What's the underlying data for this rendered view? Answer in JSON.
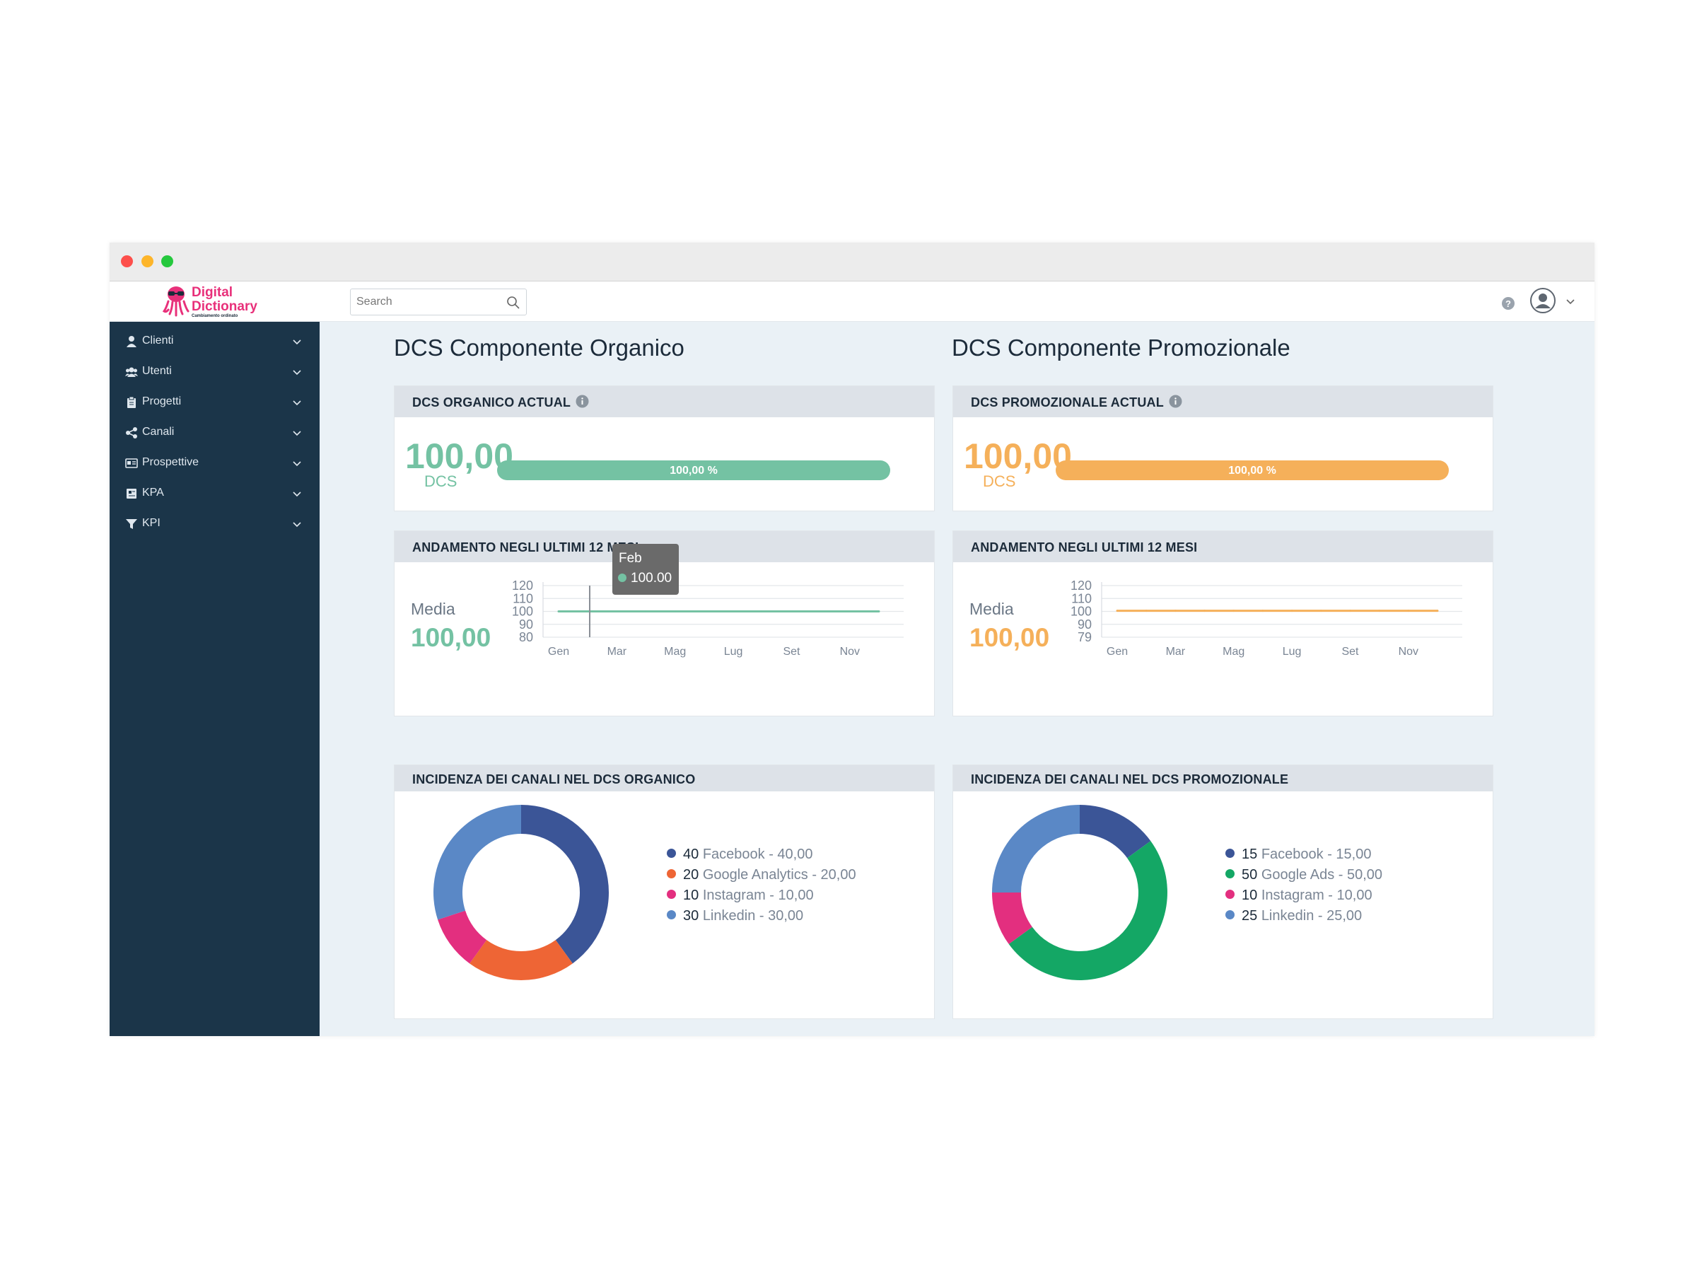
{
  "app": {
    "logo": {
      "line1": "Digital",
      "line2": "Dictionary",
      "tagline": "Cambiamento ordinato"
    },
    "search": {
      "placeholder": "Search"
    }
  },
  "sidebar": {
    "items": [
      {
        "label": "Clienti",
        "icon": "user-icon"
      },
      {
        "label": "Utenti",
        "icon": "users-icon"
      },
      {
        "label": "Progetti",
        "icon": "clipboard-icon"
      },
      {
        "label": "Canali",
        "icon": "share-icon"
      },
      {
        "label": "Prospettive",
        "icon": "card-icon"
      },
      {
        "label": "KPA",
        "icon": "kpa-icon"
      },
      {
        "label": "KPI",
        "icon": "funnel-icon"
      }
    ]
  },
  "organico": {
    "title": "DCS Componente Organico",
    "actual": {
      "header": "DCS ORGANICO ACTUAL",
      "value": "100,00",
      "unit": "DCS",
      "bar_label": "100,00 %",
      "percent": 100
    },
    "trend": {
      "header": "ANDAMENTO NEGLI ULTIMI 12 MESI",
      "media_label": "Media",
      "media_value": "100,00",
      "tooltip": {
        "month": "Feb",
        "value": "100.00"
      }
    },
    "channels": {
      "header": "INCIDENZA DEI CANALI NEL DCS ORGANICO",
      "legend": [
        {
          "num": "40",
          "label": "Facebook - 40,00"
        },
        {
          "num": "20",
          "label": "Google Analytics - 20,00"
        },
        {
          "num": "10",
          "label": "Instagram - 10,00"
        },
        {
          "num": "30",
          "label": "Linkedin - 30,00"
        }
      ]
    }
  },
  "promozionale": {
    "title": "DCS Componente Promozionale",
    "actual": {
      "header": "DCS PROMOZIONALE ACTUAL",
      "value": "100,00",
      "unit": "DCS",
      "bar_label": "100,00 %",
      "percent": 100
    },
    "trend": {
      "header": "ANDAMENTO NEGLI ULTIMI 12 MESI",
      "media_label": "Media",
      "media_value": "100,00"
    },
    "channels": {
      "header": "INCIDENZA DEI CANALI NEL DCS PROMOZIONALE",
      "legend": [
        {
          "num": "15",
          "label": "Facebook - 15,00"
        },
        {
          "num": "50",
          "label": "Google Ads - 50,00"
        },
        {
          "num": "10",
          "label": "Instagram - 10,00"
        },
        {
          "num": "25",
          "label": "Linkedin - 25,00"
        }
      ]
    }
  },
  "colors": {
    "green": "#74c2a3",
    "orange": "#f5b05a",
    "facebook": "#3b5597",
    "google_analytics": "#ee6535",
    "google_ads": "#14a765",
    "instagram": "#e32f7f",
    "linkedin": "#5a88c6"
  },
  "chart_data": [
    {
      "type": "line",
      "ylim": [
        80,
        120
      ],
      "yticks": [
        "120",
        "110",
        "100",
        "90",
        "80"
      ],
      "xticks": [
        "Gen",
        "Mar",
        "Mag",
        "Lug",
        "Set",
        "Nov"
      ],
      "series": [
        {
          "values": [
            100,
            100,
            100,
            100,
            100,
            100,
            100,
            100,
            100,
            100,
            100,
            100
          ]
        }
      ],
      "grid": true
    },
    {
      "type": "line",
      "ylim": [
        79,
        120
      ],
      "yticks": [
        "120",
        "110",
        "100",
        "90",
        "79"
      ],
      "xticks": [
        "Gen",
        "Mar",
        "Mag",
        "Lug",
        "Set",
        "Nov"
      ],
      "series": [
        {
          "values": [
            100,
            100,
            100,
            100,
            100,
            100,
            100,
            100,
            100,
            100,
            100,
            100
          ]
        }
      ],
      "grid": true
    },
    {
      "type": "pie",
      "categories": [
        "Facebook",
        "Google Analytics",
        "Instagram",
        "Linkedin"
      ],
      "values": [
        40,
        20,
        10,
        30
      ]
    },
    {
      "type": "pie",
      "categories": [
        "Facebook",
        "Google Ads",
        "Instagram",
        "Linkedin"
      ],
      "values": [
        15,
        50,
        10,
        25
      ]
    }
  ]
}
